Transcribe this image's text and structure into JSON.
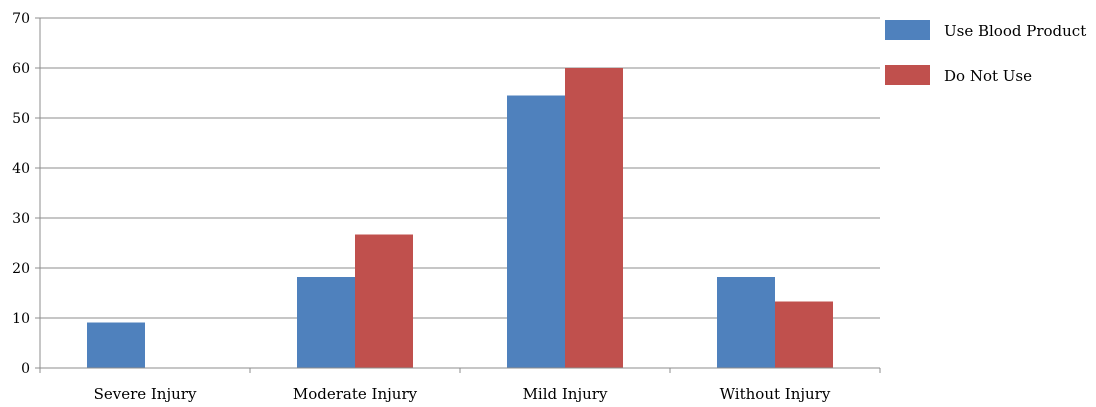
{
  "chart_data": {
    "type": "bar",
    "title": "",
    "xlabel": "",
    "ylabel": "",
    "categories": [
      "Severe Injury",
      "Moderate Injury",
      "Mild Injury",
      "Without Injury"
    ],
    "series": [
      {
        "name": "Use Blood Product",
        "values": [
          9.1,
          18.2,
          54.5,
          18.2
        ],
        "color": "#4f81bd"
      },
      {
        "name": "Do Not Use",
        "values": [
          0,
          26.7,
          60,
          13.3
        ],
        "color": "#c0504d"
      }
    ],
    "ylim": [
      0,
      70
    ],
    "yticks": [
      "0",
      "10",
      "20",
      "30",
      "40",
      "50",
      "60",
      "70"
    ],
    "grid": true,
    "legend_position": "right"
  }
}
